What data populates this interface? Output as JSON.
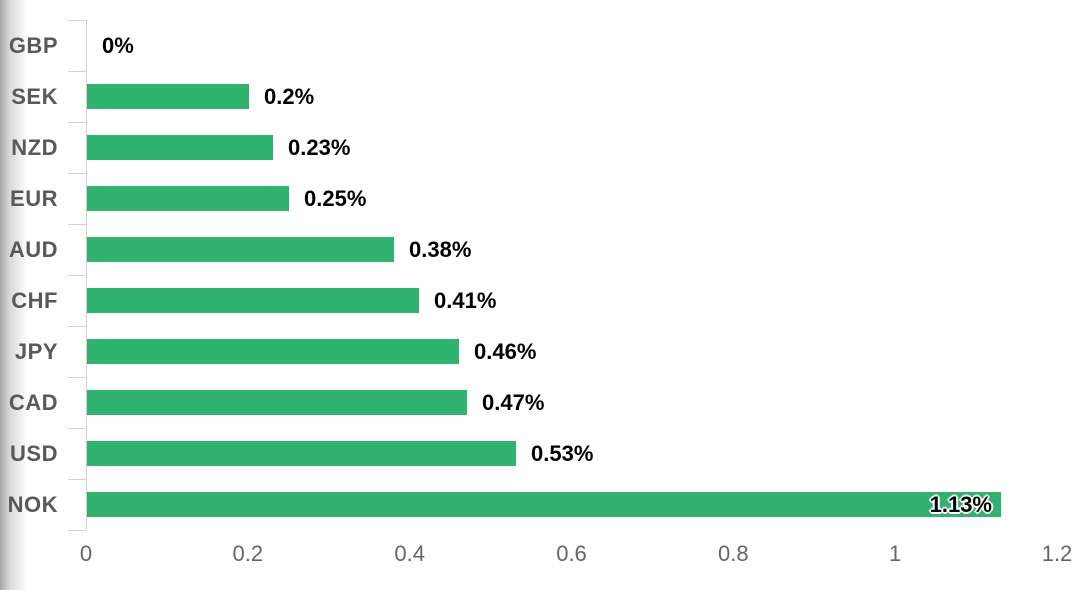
{
  "chart_data": {
    "type": "bar",
    "orientation": "horizontal",
    "title": "",
    "categories": [
      "GBP",
      "SEK",
      "NZD",
      "EUR",
      "AUD",
      "CHF",
      "JPY",
      "CAD",
      "USD",
      "NOK"
    ],
    "values": [
      0,
      0.2,
      0.23,
      0.25,
      0.38,
      0.41,
      0.46,
      0.47,
      0.53,
      1.13
    ],
    "value_labels": [
      "0%",
      "0.2%",
      "0.23%",
      "0.25%",
      "0.38%",
      "0.41%",
      "0.46%",
      "0.47%",
      "0.53%",
      "1.13%"
    ],
    "xlabel": "",
    "ylabel": "",
    "xlim": [
      0,
      1.2
    ],
    "x_tick_values": [
      0,
      0.2,
      0.4,
      0.6,
      0.8,
      1,
      1.2
    ],
    "x_tick_labels": [
      "0",
      "0.2",
      "0.4",
      "0.6",
      "0.8",
      "1",
      "1.2"
    ],
    "grid": false,
    "legend": false
  },
  "colors": {
    "bar": "#2FB36E",
    "category_label": "#58595B",
    "x_tick_label": "#666666",
    "axis_line": "#D1D1D1",
    "value_label": "#000000",
    "background": "#FFFFFF"
  }
}
